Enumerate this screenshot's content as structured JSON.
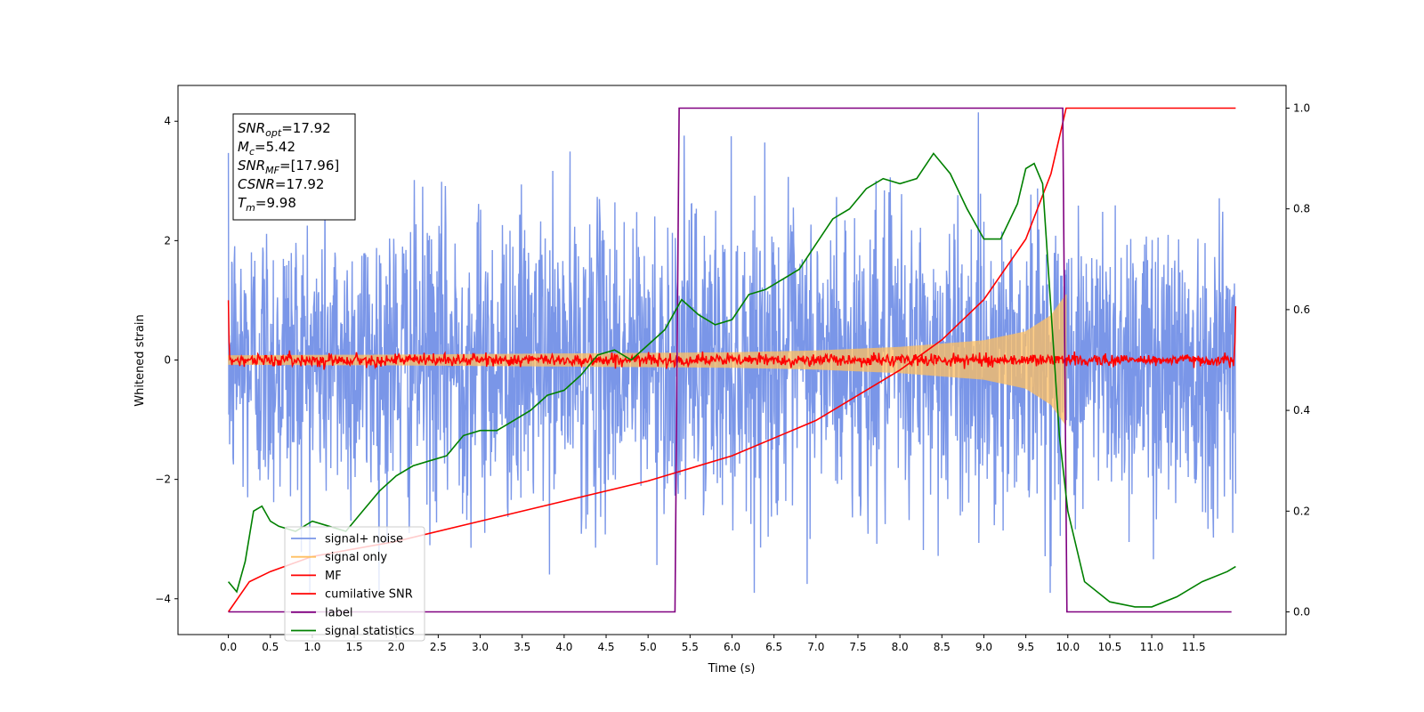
{
  "chart_data": {
    "type": "line",
    "xlabel": "Time (s)",
    "ylabel": "Whitened strain",
    "title": "",
    "xlim": [
      -0.6,
      12.6
    ],
    "ylim": [
      -4.6,
      4.6
    ],
    "y2lim": [
      -0.045,
      1.045
    ],
    "xticks": [
      0.0,
      0.5,
      1.0,
      1.5,
      2.0,
      2.5,
      3.0,
      3.5,
      4.0,
      4.5,
      5.0,
      5.5,
      6.0,
      6.5,
      7.0,
      7.5,
      8.0,
      8.5,
      9.0,
      9.5,
      10.0,
      10.5,
      11.0,
      11.5
    ],
    "xtick_labels": [
      "0.0",
      "0.5",
      "1.0",
      "1.5",
      "2.0",
      "2.5",
      "3.0",
      "3.5",
      "4.0",
      "4.5",
      "5.0",
      "5.5",
      "6.0",
      "6.5",
      "7.0",
      "7.5",
      "8.0",
      "8.5",
      "9.0",
      "9.5",
      "10.0",
      "10.5",
      "11.0",
      "11.5"
    ],
    "yticks": [
      -4,
      -2,
      0,
      2,
      4
    ],
    "ytick_labels": [
      "−4",
      "−2",
      "0",
      "2",
      "4"
    ],
    "y2ticks": [
      0.0,
      0.2,
      0.4,
      0.6,
      0.8,
      1.0
    ],
    "y2tick_labels": [
      "0.0",
      "0.2",
      "0.4",
      "0.6",
      "0.8",
      "1.0"
    ],
    "grid": false,
    "legend_position": "lower-left",
    "annotation": {
      "lines": [
        {
          "sym": "SNR",
          "sub": "opt",
          "value": "=17.92"
        },
        {
          "sym": "M",
          "sub": "c",
          "value": "=5.42"
        },
        {
          "sym": "SNR",
          "sub": "MF",
          "value": "=[17.96]"
        },
        {
          "sym": "CSNR",
          "sub": "",
          "value": "=17.92"
        },
        {
          "sym": "T",
          "sub": "m",
          "value": "=9.98"
        }
      ]
    },
    "series": [
      {
        "name": "signal+ noise",
        "color": "#7a96e8",
        "axis": "left",
        "kind": "noise",
        "x_range": [
          0.0,
          12.0
        ],
        "typical_range": [
          -2.0,
          2.0
        ],
        "extremes": [
          -3.9,
          4.15
        ]
      },
      {
        "name": "signal only",
        "color": "#ffbf60",
        "axis": "left",
        "kind": "chirp",
        "t_merge": 9.98,
        "envelope": {
          "t": [
            0.0,
            2.0,
            4.0,
            6.0,
            7.0,
            8.0,
            9.0,
            9.5,
            9.8,
            9.98
          ],
          "amp": [
            0.08,
            0.09,
            0.11,
            0.13,
            0.16,
            0.22,
            0.33,
            0.48,
            0.75,
            1.1
          ]
        }
      },
      {
        "name": "MF",
        "color": "#ff0000",
        "axis": "left",
        "kind": "mf-noise",
        "x_range": [
          0.0,
          12.0
        ],
        "typical_amplitude": 0.05,
        "edge_values": [
          1.0,
          0.9
        ]
      },
      {
        "name": "cumilative SNR",
        "color": "#ff0000",
        "axis": "right",
        "x": [
          0.0,
          0.25,
          0.5,
          1.0,
          2.0,
          3.0,
          4.0,
          5.0,
          6.0,
          7.0,
          8.0,
          8.5,
          9.0,
          9.5,
          9.8,
          9.98,
          10.05,
          11.0,
          12.0
        ],
        "y": [
          0.0,
          0.06,
          0.08,
          0.11,
          0.14,
          0.18,
          0.22,
          0.26,
          0.31,
          0.38,
          0.48,
          0.54,
          0.62,
          0.74,
          0.87,
          1.0,
          1.0,
          1.0,
          1.0
        ]
      },
      {
        "name": "label",
        "color": "#800080",
        "axis": "right",
        "x": [
          0.0,
          5.32,
          5.37,
          9.94,
          9.99,
          11.95
        ],
        "y": [
          0.0,
          0.0,
          1.0,
          1.0,
          0.0,
          0.0
        ]
      },
      {
        "name": "signal statistics",
        "color": "#008000",
        "axis": "right",
        "x": [
          0.0,
          0.1,
          0.2,
          0.3,
          0.4,
          0.5,
          0.6,
          0.8,
          1.0,
          1.2,
          1.4,
          1.6,
          1.8,
          2.0,
          2.2,
          2.4,
          2.6,
          2.8,
          3.0,
          3.2,
          3.4,
          3.6,
          3.8,
          4.0,
          4.2,
          4.4,
          4.6,
          4.8,
          5.0,
          5.2,
          5.4,
          5.6,
          5.8,
          6.0,
          6.2,
          6.4,
          6.6,
          6.8,
          7.0,
          7.2,
          7.4,
          7.6,
          7.8,
          8.0,
          8.2,
          8.4,
          8.6,
          8.8,
          9.0,
          9.2,
          9.4,
          9.5,
          9.6,
          9.7,
          9.8,
          9.9,
          10.0,
          10.2,
          10.5,
          10.8,
          11.0,
          11.3,
          11.6,
          11.9,
          12.0
        ],
        "y": [
          0.06,
          0.04,
          0.1,
          0.2,
          0.21,
          0.18,
          0.17,
          0.16,
          0.18,
          0.17,
          0.16,
          0.2,
          0.24,
          0.27,
          0.29,
          0.3,
          0.31,
          0.35,
          0.36,
          0.36,
          0.38,
          0.4,
          0.43,
          0.44,
          0.47,
          0.51,
          0.52,
          0.5,
          0.53,
          0.56,
          0.62,
          0.59,
          0.57,
          0.58,
          0.63,
          0.64,
          0.66,
          0.68,
          0.73,
          0.78,
          0.8,
          0.84,
          0.86,
          0.85,
          0.86,
          0.91,
          0.87,
          0.8,
          0.74,
          0.74,
          0.81,
          0.88,
          0.89,
          0.85,
          0.6,
          0.35,
          0.2,
          0.06,
          0.02,
          0.01,
          0.01,
          0.03,
          0.06,
          0.08,
          0.09
        ]
      }
    ]
  }
}
